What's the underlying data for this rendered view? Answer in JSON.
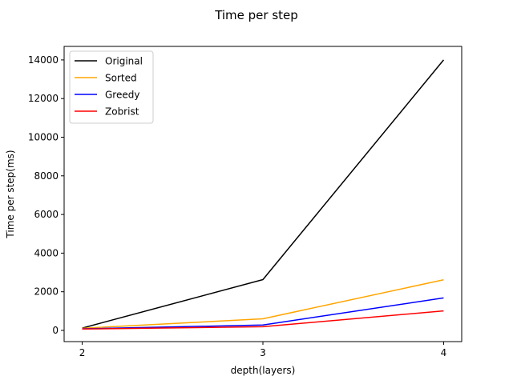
{
  "chart_data": {
    "type": "line",
    "title": "Time per step",
    "xlabel": "depth(layers)",
    "ylabel": "Time per step(ms)",
    "x": [
      2,
      3,
      4
    ],
    "xlim": [
      1.9,
      4.1
    ],
    "ylim": [
      -580,
      14700
    ],
    "xticks": [
      2,
      3,
      4
    ],
    "yticks": [
      0,
      2000,
      4000,
      6000,
      8000,
      10000,
      12000,
      14000
    ],
    "grid": false,
    "legend_position": "top-left",
    "series": [
      {
        "name": "Original",
        "color": "#000000",
        "values": [
          120,
          2630,
          14000
        ]
      },
      {
        "name": "Sorted",
        "color": "#ffa500",
        "values": [
          110,
          600,
          2620
        ]
      },
      {
        "name": "Greedy",
        "color": "#0000ff",
        "values": [
          80,
          280,
          1680
        ]
      },
      {
        "name": "Zobrist",
        "color": "#ff0000",
        "values": [
          70,
          190,
          1010
        ]
      }
    ]
  }
}
